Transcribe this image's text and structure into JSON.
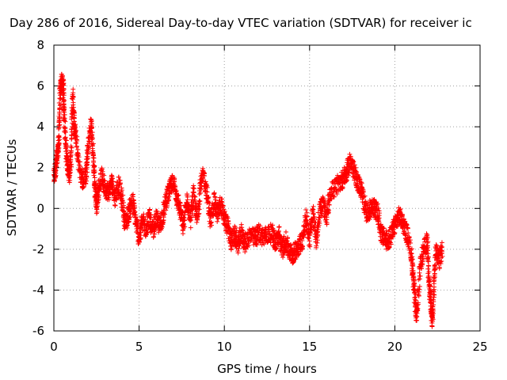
{
  "chart_data": {
    "type": "scatter",
    "title": "Day 286 of 2016, Sidereal Day-to-day VTEC variation (SDTVAR) for receiver ic",
    "xlabel": "GPS time / hours",
    "ylabel": "SDTVAR / TECUs",
    "xlim": [
      0,
      25
    ],
    "ylim": [
      -6,
      8
    ],
    "xticks": [
      0,
      5,
      10,
      15,
      20,
      25
    ],
    "yticks": [
      -6,
      -4,
      -2,
      0,
      2,
      4,
      6,
      8
    ],
    "grid": true,
    "marker": "+",
    "color": "#ff0000",
    "series": [
      {
        "trace": [
          [
            0.0,
            1.5
          ],
          [
            0.1,
            2.0
          ],
          [
            0.2,
            2.5
          ],
          [
            0.3,
            3.3
          ],
          [
            0.35,
            5.5
          ],
          [
            0.45,
            6.2
          ],
          [
            0.55,
            6.0
          ],
          [
            0.6,
            4.8
          ],
          [
            0.7,
            3.0
          ],
          [
            0.8,
            2.2
          ],
          [
            0.9,
            1.6
          ],
          [
            1.0,
            2.5
          ],
          [
            1.1,
            5.6
          ],
          [
            1.2,
            4.0
          ],
          [
            1.3,
            3.5
          ],
          [
            1.5,
            2.0
          ],
          [
            1.7,
            1.3
          ],
          [
            1.9,
            1.7
          ],
          [
            2.0,
            3.0
          ],
          [
            2.2,
            4.2
          ],
          [
            2.3,
            2.6
          ],
          [
            2.4,
            1.2
          ],
          [
            2.5,
            0.2
          ],
          [
            2.6,
            0.8
          ],
          [
            2.8,
            1.6
          ],
          [
            3.0,
            1.0
          ],
          [
            3.2,
            0.8
          ],
          [
            3.4,
            1.3
          ],
          [
            3.6,
            0.5
          ],
          [
            3.8,
            1.2
          ],
          [
            4.0,
            0.4
          ],
          [
            4.2,
            -0.8
          ],
          [
            4.4,
            -0.2
          ],
          [
            4.6,
            0.4
          ],
          [
            4.8,
            -0.6
          ],
          [
            5.0,
            -1.5
          ],
          [
            5.2,
            -0.6
          ],
          [
            5.4,
            -1.0
          ],
          [
            5.6,
            -0.4
          ],
          [
            5.8,
            -1.2
          ],
          [
            6.0,
            -0.5
          ],
          [
            6.2,
            -0.9
          ],
          [
            6.4,
            -0.3
          ],
          [
            6.6,
            0.5
          ],
          [
            6.8,
            0.9
          ],
          [
            7.0,
            1.3
          ],
          [
            7.2,
            0.6
          ],
          [
            7.4,
            -0.1
          ],
          [
            7.6,
            -0.9
          ],
          [
            7.8,
            0.4
          ],
          [
            8.0,
            -0.5
          ],
          [
            8.2,
            0.7
          ],
          [
            8.4,
            -0.6
          ],
          [
            8.6,
            1.2
          ],
          [
            8.8,
            1.6
          ],
          [
            9.0,
            0.6
          ],
          [
            9.2,
            -0.7
          ],
          [
            9.4,
            0.4
          ],
          [
            9.6,
            -0.3
          ],
          [
            9.8,
            0.2
          ],
          [
            10.0,
            -0.5
          ],
          [
            10.2,
            -0.9
          ],
          [
            10.4,
            -1.6
          ],
          [
            10.6,
            -1.3
          ],
          [
            10.8,
            -1.8
          ],
          [
            11.0,
            -1.2
          ],
          [
            11.2,
            -1.7
          ],
          [
            11.5,
            -1.3
          ],
          [
            11.8,
            -1.5
          ],
          [
            12.0,
            -1.2
          ],
          [
            12.3,
            -1.4
          ],
          [
            12.5,
            -1.3
          ],
          [
            12.8,
            -1.2
          ],
          [
            13.0,
            -1.7
          ],
          [
            13.2,
            -1.3
          ],
          [
            13.4,
            -2.0
          ],
          [
            13.6,
            -1.6
          ],
          [
            13.8,
            -2.1
          ],
          [
            14.0,
            -2.3
          ],
          [
            14.2,
            -2.0
          ],
          [
            14.4,
            -1.8
          ],
          [
            14.6,
            -1.5
          ],
          [
            14.8,
            -0.5
          ],
          [
            15.0,
            -1.5
          ],
          [
            15.2,
            -0.2
          ],
          [
            15.4,
            -1.6
          ],
          [
            15.6,
            0.0
          ],
          [
            15.8,
            0.2
          ],
          [
            16.0,
            -0.5
          ],
          [
            16.2,
            0.8
          ],
          [
            16.5,
            1.0
          ],
          [
            16.8,
            1.3
          ],
          [
            17.0,
            1.5
          ],
          [
            17.2,
            1.8
          ],
          [
            17.4,
            2.4
          ],
          [
            17.6,
            1.8
          ],
          [
            17.8,
            1.3
          ],
          [
            18.0,
            1.0
          ],
          [
            18.2,
            0.3
          ],
          [
            18.4,
            -0.3
          ],
          [
            18.6,
            0.1
          ],
          [
            18.8,
            0.0
          ],
          [
            19.0,
            -0.2
          ],
          [
            19.2,
            -1.2
          ],
          [
            19.4,
            -1.5
          ],
          [
            19.6,
            -1.6
          ],
          [
            19.8,
            -1.3
          ],
          [
            20.0,
            -0.8
          ],
          [
            20.2,
            -0.4
          ],
          [
            20.4,
            -0.5
          ],
          [
            20.6,
            -1.0
          ],
          [
            20.8,
            -1.5
          ],
          [
            21.0,
            -2.5
          ],
          [
            21.1,
            -3.5
          ],
          [
            21.2,
            -4.8
          ],
          [
            21.3,
            -5.3
          ],
          [
            21.5,
            -2.7
          ],
          [
            21.7,
            -2.0
          ],
          [
            21.9,
            -1.6
          ],
          [
            22.0,
            -3.6
          ],
          [
            22.1,
            -4.5
          ],
          [
            22.2,
            -5.6
          ],
          [
            22.3,
            -3.8
          ],
          [
            22.4,
            -2.0
          ],
          [
            22.6,
            -2.5
          ],
          [
            22.8,
            -2.0
          ]
        ]
      }
    ]
  }
}
